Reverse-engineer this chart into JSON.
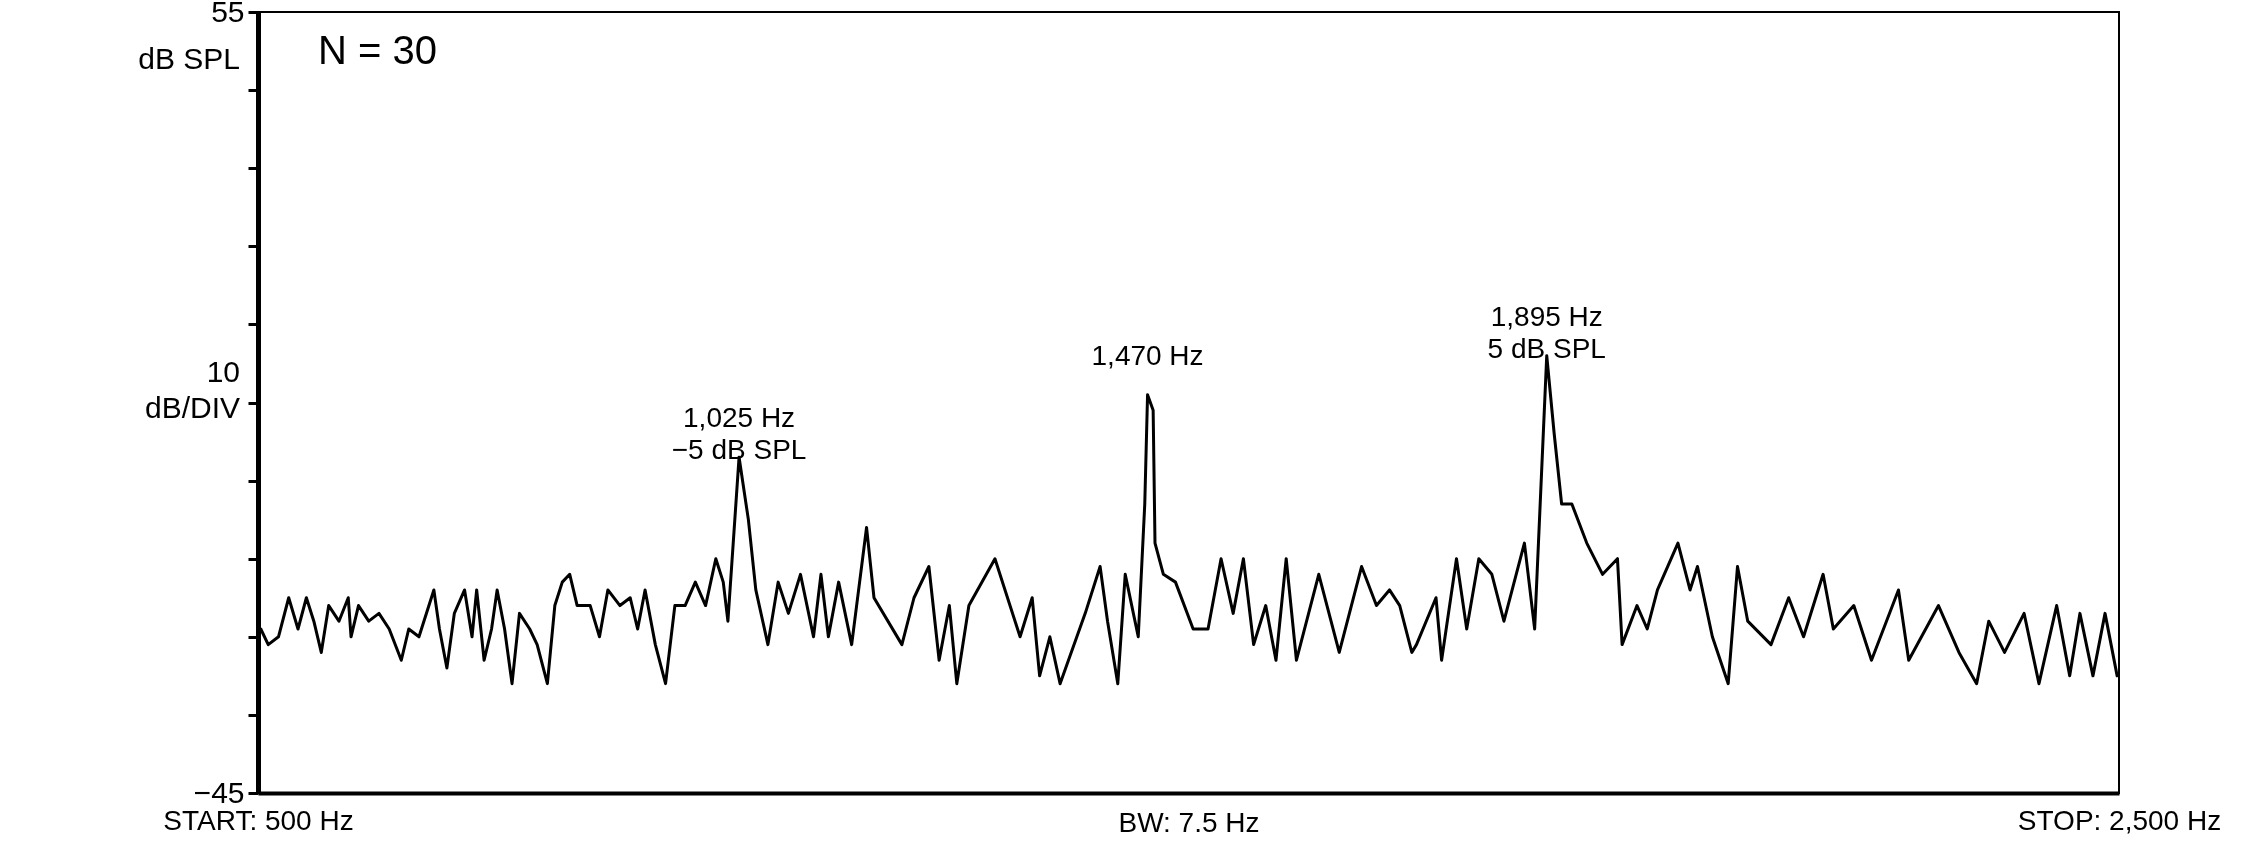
{
  "chart_data": {
    "type": "line",
    "xlim": [
      500,
      2500
    ],
    "xticks": [
      {
        "value": 500,
        "label": "START: 500 Hz"
      },
      {
        "value": 2500,
        "label": "STOP: 2,500 Hz"
      }
    ],
    "ylim": [
      -45,
      55
    ],
    "yticks": [
      {
        "value": 55,
        "label": "55"
      },
      {
        "value": 45,
        "label": null
      },
      {
        "value": 35,
        "label": null
      },
      {
        "value": 25,
        "label": null
      },
      {
        "value": 15,
        "label": null
      },
      {
        "value": 5,
        "label": null
      },
      {
        "value": -5,
        "label": null
      },
      {
        "value": -15,
        "label": null
      },
      {
        "value": -25,
        "label": null
      },
      {
        "value": -35,
        "label": null
      },
      {
        "value": -45,
        "label": "−45"
      }
    ],
    "ylabel": "dB SPL",
    "grid": false,
    "marker": "none",
    "line_style": "solid",
    "xlabel": "BW: 7.5 Hz",
    "annotations": [
      "N = 30",
      "10 dB/DIV",
      {
        "text": "1,025 Hz\n−5 dB SPL",
        "x": 1017,
        "y": -2
      },
      {
        "text": "1,470 Hz",
        "x": 1456,
        "y": 6
      },
      {
        "text": "1,895 Hz\n5 dB SPL",
        "x": 1885,
        "y": 11
      }
    ],
    "series": [
      {
        "color": "#000000",
        "x": [
          503,
          511,
          522,
          533,
          543,
          552,
          560,
          568,
          576,
          587,
          597,
          600,
          608,
          619,
          630,
          641,
          654,
          662,
          673,
          689,
          695,
          703,
          711,
          722,
          730,
          735,
          743,
          751,
          757,
          765,
          773,
          781,
          792,
          800,
          811,
          819,
          827,
          835,
          843,
          857,
          867,
          876,
          889,
          900,
          908,
          916,
          927,
          938,
          948,
          959,
          970,
          981,
          992,
          1000,
          1005,
          1017,
          1027,
          1035,
          1048,
          1059,
          1070,
          1083,
          1097,
          1105,
          1113,
          1124,
          1138,
          1154,
          1162,
          1192,
          1205,
          1221,
          1232,
          1243,
          1251,
          1264,
          1292,
          1319,
          1332,
          1340,
          1351,
          1362,
          1389,
          1405,
          1413,
          1424,
          1432,
          1446,
          1453,
          1456,
          1462,
          1464,
          1473,
          1486,
          1505,
          1521,
          1535,
          1548,
          1559,
          1570,
          1583,
          1594,
          1605,
          1616,
          1640,
          1662,
          1686,
          1702,
          1716,
          1727,
          1740,
          1745,
          1766,
          1772,
          1788,
          1799,
          1812,
          1826,
          1839,
          1861,
          1872,
          1885,
          1893,
          1901,
          1912,
          1928,
          1945,
          1961,
          1966,
          1982,
          1993,
          2004,
          2026,
          2039,
          2047,
          2063,
          2080,
          2090,
          2101,
          2126,
          2145,
          2161,
          2182,
          2193,
          2215,
          2234,
          2263,
          2274,
          2306,
          2328,
          2347,
          2360,
          2377,
          2398,
          2414,
          2433,
          2447,
          2458,
          2472,
          2485,
          2498
        ],
        "values": [
          -24,
          -26,
          -25,
          -20,
          -24,
          -20,
          -23,
          -27,
          -21,
          -23,
          -20,
          -25,
          -21,
          -23,
          -22,
          -24,
          -28,
          -24,
          -25,
          -19,
          -24,
          -29,
          -22,
          -19,
          -25,
          -19,
          -28,
          -24,
          -19,
          -24,
          -31,
          -22,
          -24,
          -26,
          -31,
          -21,
          -18,
          -17,
          -21,
          -21,
          -25,
          -19,
          -21,
          -20,
          -24,
          -19,
          -26,
          -31,
          -21,
          -21,
          -18,
          -21,
          -15,
          -18,
          -23,
          -2,
          -10,
          -19,
          -26,
          -18,
          -22,
          -17,
          -25,
          -17,
          -25,
          -18,
          -26,
          -11,
          -20,
          -26,
          -20,
          -16,
          -28,
          -21,
          -31,
          -21,
          -15,
          -25,
          -20,
          -30,
          -25,
          -31,
          -22,
          -16,
          -23,
          -31,
          -17,
          -25,
          -8,
          6,
          4,
          -13,
          -17,
          -18,
          -24,
          -24,
          -15,
          -22,
          -15,
          -26,
          -21,
          -28,
          -15,
          -28,
          -17,
          -27,
          -16,
          -21,
          -19,
          -21,
          -27,
          -26,
          -20,
          -28,
          -15,
          -24,
          -15,
          -17,
          -23,
          -13,
          -24,
          11,
          1,
          -8,
          -8,
          -13,
          -17,
          -15,
          -26,
          -21,
          -24,
          -19,
          -13,
          -19,
          -16,
          -25,
          -31,
          -16,
          -23,
          -26,
          -20,
          -25,
          -17,
          -24,
          -21,
          -28,
          -19,
          -28,
          -21,
          -27,
          -31,
          -23,
          -27,
          -22,
          -31,
          -21,
          -30,
          -22,
          -30,
          -22,
          -30
        ]
      }
    ]
  }
}
